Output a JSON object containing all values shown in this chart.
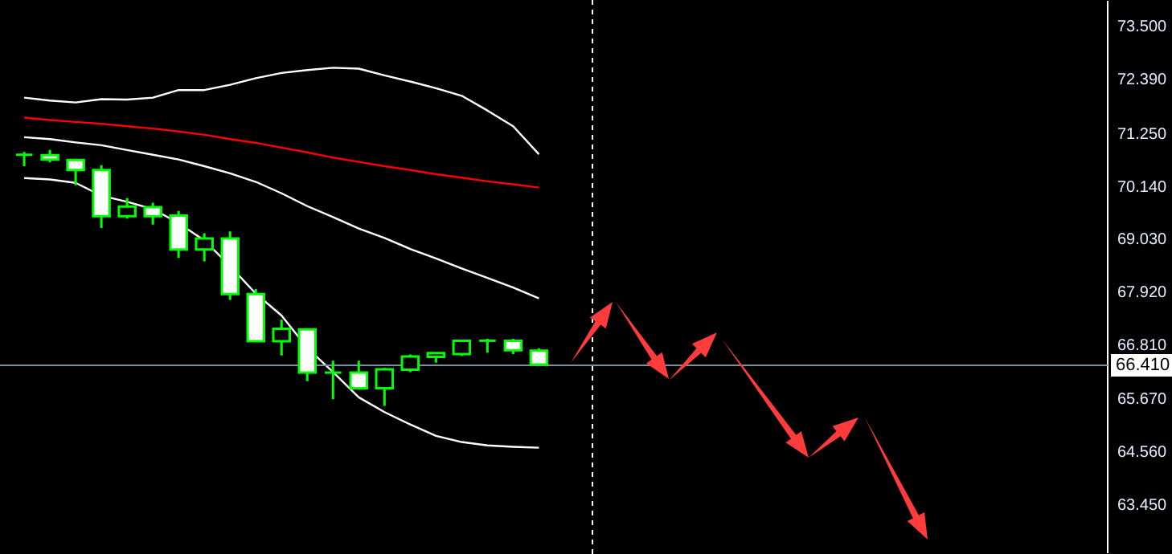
{
  "chart_data": {
    "type": "candlestick",
    "categories": [
      null,
      null,
      null,
      null,
      null,
      null,
      null,
      null,
      null,
      null,
      null,
      null,
      null,
      null,
      null,
      null,
      null,
      null,
      null,
      null,
      null,
      null,
      null,
      null,
      null,
      null,
      null,
      null,
      null,
      null,
      null,
      null,
      null,
      null,
      null,
      null,
      null,
      null,
      null,
      null,
      null,
      null,
      null
    ],
    "ohlc": [
      [
        70.82,
        70.88,
        70.58,
        70.82
      ],
      [
        70.81,
        70.92,
        70.66,
        70.72
      ],
      [
        70.71,
        70.72,
        70.18,
        70.5
      ],
      [
        70.5,
        70.6,
        69.28,
        69.53
      ],
      [
        69.53,
        69.91,
        69.48,
        69.73
      ],
      [
        69.72,
        69.81,
        69.35,
        69.53
      ],
      [
        69.54,
        69.64,
        68.65,
        68.83
      ],
      [
        68.83,
        69.17,
        68.58,
        69.06
      ],
      [
        69.06,
        69.21,
        67.77,
        67.89
      ],
      [
        67.89,
        68.0,
        66.9,
        66.9
      ],
      [
        66.9,
        67.35,
        66.6,
        67.16
      ],
      [
        67.15,
        67.15,
        66.06,
        66.24
      ],
      [
        66.24,
        66.49,
        65.68,
        66.24
      ],
      [
        66.24,
        66.49,
        65.91,
        65.91
      ],
      [
        65.91,
        66.34,
        65.54,
        66.31
      ],
      [
        66.3,
        66.62,
        66.25,
        66.58
      ],
      [
        66.57,
        66.65,
        66.45,
        66.65
      ],
      [
        66.63,
        66.91,
        66.59,
        66.91
      ],
      [
        66.91,
        66.95,
        66.66,
        66.91
      ],
      [
        66.91,
        66.95,
        66.63,
        66.71
      ],
      [
        66.7,
        66.75,
        66.38,
        66.41
      ],
      null,
      null,
      null,
      null,
      null,
      null,
      null,
      null,
      null,
      null,
      null,
      null,
      null,
      null,
      null,
      null,
      null,
      null,
      null,
      null,
      null,
      null
    ],
    "color": "#00ff00",
    "colors": [
      "#00ff00",
      "#ffffff",
      "#ffffff",
      "#ffffff",
      "#000000",
      "#ffffff",
      "#ffffff",
      "#000000",
      "#ffffff",
      "#ffffff",
      "#000000",
      "#ffffff",
      "#00ff00",
      "#ffffff",
      "#000000",
      "#000000",
      "#000000",
      "#000000",
      "#00ff00",
      "#ffffff",
      "#ffffff",
      null,
      null,
      null,
      null,
      null,
      null,
      null,
      null,
      null,
      null,
      null,
      null,
      null,
      null,
      null,
      null,
      null,
      null,
      null,
      null,
      null,
      null
    ],
    "series": [
      {
        "type": "line",
        "color": "#ffffff",
        "values": [
          72.02,
          71.96,
          71.92,
          71.99,
          71.98,
          72.02,
          72.18,
          72.18,
          72.29,
          72.43,
          72.54,
          72.6,
          72.65,
          72.63,
          72.49,
          72.36,
          72.22,
          72.06,
          71.75,
          71.42,
          70.83,
          null,
          null,
          null,
          null,
          null,
          null,
          null,
          null,
          null,
          null,
          null,
          null,
          null,
          null,
          null,
          null,
          null,
          null,
          null,
          null,
          null,
          null
        ]
      },
      {
        "type": "line",
        "color": "#ff0000",
        "values": [
          71.6,
          71.55,
          71.51,
          71.47,
          71.42,
          71.37,
          71.31,
          71.24,
          71.15,
          71.07,
          70.97,
          70.87,
          70.76,
          70.67,
          70.58,
          70.5,
          70.41,
          70.34,
          70.26,
          70.2,
          70.13,
          null,
          null,
          null,
          null,
          null,
          null,
          null,
          null,
          null,
          null,
          null,
          null,
          null,
          null,
          null,
          null,
          null,
          null,
          null,
          null,
          null,
          null
        ]
      },
      {
        "type": "line",
        "color": "#ffffff",
        "values": [
          71.19,
          71.15,
          71.08,
          71.02,
          70.92,
          70.82,
          70.72,
          70.58,
          70.43,
          70.25,
          70.01,
          69.74,
          69.51,
          69.27,
          69.07,
          68.84,
          68.64,
          68.43,
          68.23,
          68.03,
          67.8,
          null,
          null,
          null,
          null,
          null,
          null,
          null,
          null,
          null,
          null,
          null,
          null,
          null,
          null,
          null,
          null,
          null,
          null,
          null,
          null,
          null,
          null
        ]
      },
      {
        "type": "line",
        "color": "#ffffff",
        "values": [
          70.33,
          70.3,
          70.23,
          69.96,
          69.83,
          69.68,
          69.38,
          69.02,
          68.48,
          67.9,
          67.44,
          66.76,
          66.25,
          65.72,
          65.41,
          65.15,
          64.91,
          64.78,
          64.71,
          64.68,
          64.66,
          null,
          null,
          null,
          null,
          null,
          null,
          null,
          null,
          null,
          null,
          null,
          null,
          null,
          null,
          null,
          null,
          null,
          null,
          null,
          null,
          null,
          null
        ]
      }
    ],
    "ylim": [
      62.46,
      74.04
    ],
    "yticks": [
      {
        "value": 73.5,
        "label": "73.500"
      },
      {
        "value": 72.39,
        "label": "72.390"
      },
      {
        "value": 71.25,
        "label": "71.250"
      },
      {
        "value": 70.14,
        "label": "70.140"
      },
      {
        "value": 69.03,
        "label": "69.030"
      },
      {
        "value": 67.92,
        "label": "67.920"
      },
      {
        "value": 66.81,
        "label": "66.810"
      },
      {
        "value": 65.67,
        "label": "65.670"
      },
      {
        "value": 64.56,
        "label": "64.560"
      },
      {
        "value": 63.45,
        "label": "63.450"
      }
    ],
    "ref_lines": [
      {
        "axis": "y",
        "value": 66.41,
        "label": "66.410",
        "color": "#7f8fa0"
      }
    ],
    "tick_labels": "y"
  }
}
